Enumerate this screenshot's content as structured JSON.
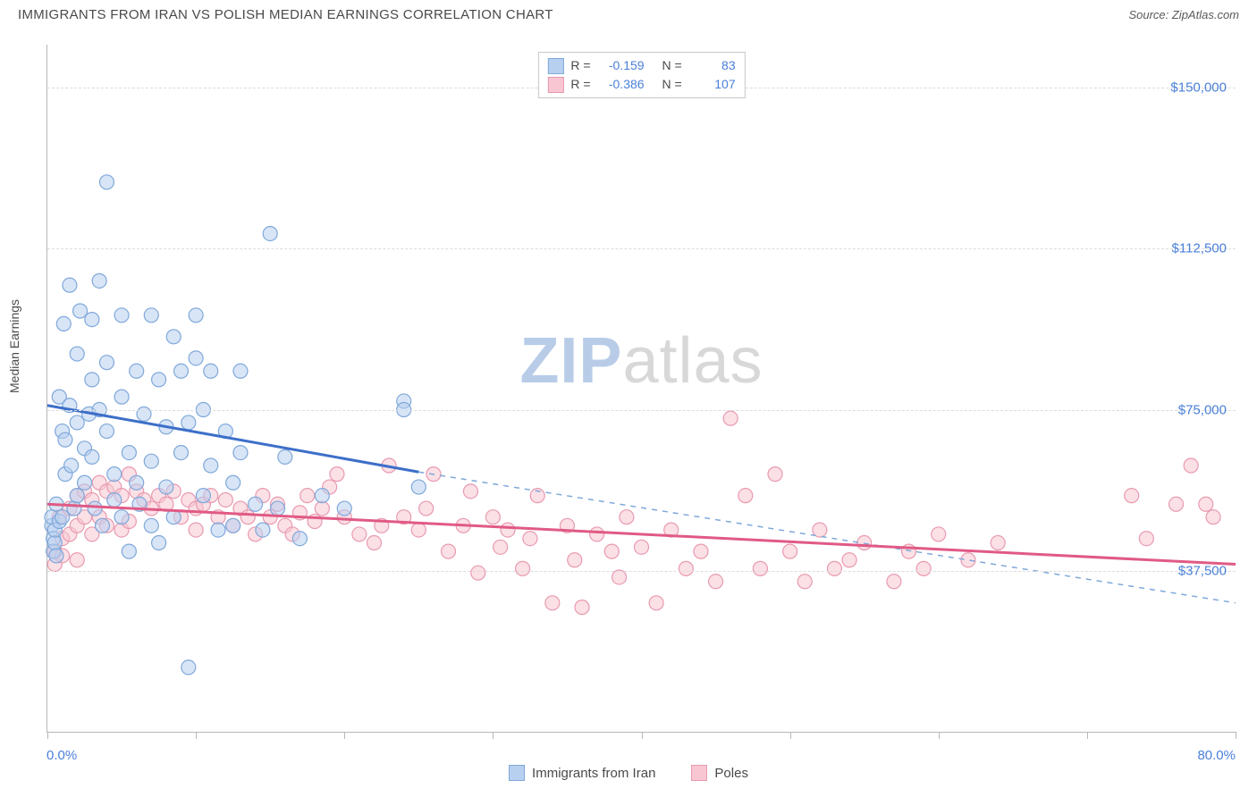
{
  "title": "IMMIGRANTS FROM IRAN VS POLISH MEDIAN EARNINGS CORRELATION CHART",
  "source": "Source: ZipAtlas.com",
  "ylabel": "Median Earnings",
  "watermark_zip": "ZIP",
  "watermark_atlas": "atlas",
  "chart": {
    "type": "scatter",
    "xlim": [
      0,
      80
    ],
    "ylim": [
      0,
      160000
    ],
    "xunit": "%",
    "yunit": "$",
    "yticks": [
      37500,
      75000,
      112500,
      150000
    ],
    "ytick_labels": [
      "$37,500",
      "$75,000",
      "$112,500",
      "$150,000"
    ],
    "xtick_positions": [
      0,
      10,
      20,
      30,
      40,
      50,
      60,
      70,
      80
    ],
    "xaxis_start_label": "0.0%",
    "xaxis_end_label": "80.0%",
    "grid_color": "#dcdcdc",
    "grid_dash": "4,4",
    "background_color": "#ffffff",
    "axis_color": "#b8b8b8",
    "marker_radius": 8,
    "marker_stroke_width": 1.2,
    "series": [
      {
        "name": "Immigrants from Iran",
        "legend_label": "Immigrants from Iran",
        "fill": "#b8d0f0",
        "fill_opacity": 0.55,
        "stroke": "#7fa8da",
        "line_color": "#3d6fc9",
        "line_width": 3,
        "dash_color": "#7fa8da",
        "R_label": "R =",
        "R": "-0.159",
        "N_label": "N =",
        "N": "83",
        "trend_solid": {
          "x1": 0,
          "y1": 76000,
          "x2": 25,
          "y2": 60500
        },
        "trend_dash": {
          "x1": 25,
          "y1": 60500,
          "x2": 80,
          "y2": 30000
        },
        "points": [
          [
            0.3,
            48000
          ],
          [
            0.3,
            50000
          ],
          [
            0.4,
            45000
          ],
          [
            0.4,
            42000
          ],
          [
            0.5,
            44000
          ],
          [
            0.5,
            47000
          ],
          [
            0.6,
            41000
          ],
          [
            0.6,
            53000
          ],
          [
            0.8,
            78000
          ],
          [
            0.8,
            49000
          ],
          [
            1.0,
            70000
          ],
          [
            1.0,
            50000
          ],
          [
            1.1,
            95000
          ],
          [
            1.2,
            68000
          ],
          [
            1.2,
            60000
          ],
          [
            1.5,
            104000
          ],
          [
            1.5,
            76000
          ],
          [
            1.6,
            62000
          ],
          [
            1.8,
            52000
          ],
          [
            2.0,
            88000
          ],
          [
            2.0,
            72000
          ],
          [
            2.0,
            55000
          ],
          [
            2.2,
            98000
          ],
          [
            2.5,
            66000
          ],
          [
            2.5,
            58000
          ],
          [
            2.8,
            74000
          ],
          [
            3.0,
            96000
          ],
          [
            3.0,
            82000
          ],
          [
            3.0,
            64000
          ],
          [
            3.2,
            52000
          ],
          [
            3.5,
            105000
          ],
          [
            3.5,
            75000
          ],
          [
            3.7,
            48000
          ],
          [
            4.0,
            128000
          ],
          [
            4.0,
            86000
          ],
          [
            4.0,
            70000
          ],
          [
            4.5,
            60000
          ],
          [
            4.5,
            54000
          ],
          [
            5.0,
            97000
          ],
          [
            5.0,
            78000
          ],
          [
            5.0,
            50000
          ],
          [
            5.5,
            65000
          ],
          [
            5.5,
            42000
          ],
          [
            6.0,
            84000
          ],
          [
            6.0,
            58000
          ],
          [
            6.2,
            53000
          ],
          [
            6.5,
            74000
          ],
          [
            7.0,
            97000
          ],
          [
            7.0,
            63000
          ],
          [
            7.0,
            48000
          ],
          [
            7.5,
            82000
          ],
          [
            7.5,
            44000
          ],
          [
            8.0,
            71000
          ],
          [
            8.0,
            57000
          ],
          [
            8.5,
            92000
          ],
          [
            8.5,
            50000
          ],
          [
            9.0,
            84000
          ],
          [
            9.0,
            65000
          ],
          [
            9.5,
            72000
          ],
          [
            9.5,
            15000
          ],
          [
            10.0,
            97000
          ],
          [
            10.0,
            87000
          ],
          [
            10.5,
            75000
          ],
          [
            10.5,
            55000
          ],
          [
            11.0,
            84000
          ],
          [
            11.0,
            62000
          ],
          [
            11.5,
            47000
          ],
          [
            12.0,
            70000
          ],
          [
            12.5,
            58000
          ],
          [
            12.5,
            48000
          ],
          [
            13.0,
            84000
          ],
          [
            13.0,
            65000
          ],
          [
            14.0,
            53000
          ],
          [
            14.5,
            47000
          ],
          [
            15.0,
            116000
          ],
          [
            15.5,
            52000
          ],
          [
            16.0,
            64000
          ],
          [
            17.0,
            45000
          ],
          [
            18.5,
            55000
          ],
          [
            20.0,
            52000
          ],
          [
            24.0,
            77000
          ],
          [
            24.0,
            75000
          ],
          [
            25.0,
            57000
          ]
        ]
      },
      {
        "name": "Poles",
        "legend_label": "Poles",
        "fill": "#f8c6d2",
        "fill_opacity": 0.55,
        "stroke": "#e89ab0",
        "line_color": "#e05a85",
        "line_width": 3,
        "R_label": "R =",
        "R": "-0.386",
        "N_label": "N =",
        "N": "107",
        "trend_solid": {
          "x1": 0,
          "y1": 53000,
          "x2": 80,
          "y2": 39000
        },
        "points": [
          [
            0.5,
            42000
          ],
          [
            0.5,
            39000
          ],
          [
            0.8,
            50000
          ],
          [
            1.0,
            45000
          ],
          [
            1.0,
            41000
          ],
          [
            1.5,
            52000
          ],
          [
            1.5,
            46000
          ],
          [
            2.0,
            55000
          ],
          [
            2.0,
            48000
          ],
          [
            2.0,
            40000
          ],
          [
            2.5,
            56000
          ],
          [
            2.5,
            50000
          ],
          [
            3.0,
            54000
          ],
          [
            3.0,
            46000
          ],
          [
            3.5,
            58000
          ],
          [
            3.5,
            50000
          ],
          [
            4.0,
            56000
          ],
          [
            4.0,
            48000
          ],
          [
            4.5,
            57000
          ],
          [
            5.0,
            55000
          ],
          [
            5.0,
            47000
          ],
          [
            5.5,
            60000
          ],
          [
            5.5,
            49000
          ],
          [
            6.0,
            56000
          ],
          [
            6.5,
            54000
          ],
          [
            7.0,
            52000
          ],
          [
            7.5,
            55000
          ],
          [
            8.0,
            53000
          ],
          [
            8.5,
            56000
          ],
          [
            9.0,
            50000
          ],
          [
            9.5,
            54000
          ],
          [
            10.0,
            52000
          ],
          [
            10.0,
            47000
          ],
          [
            10.5,
            53000
          ],
          [
            11.0,
            55000
          ],
          [
            11.5,
            50000
          ],
          [
            12.0,
            54000
          ],
          [
            12.5,
            48000
          ],
          [
            13.0,
            52000
          ],
          [
            13.5,
            50000
          ],
          [
            14.0,
            46000
          ],
          [
            14.5,
            55000
          ],
          [
            15.0,
            50000
          ],
          [
            15.5,
            53000
          ],
          [
            16.0,
            48000
          ],
          [
            16.5,
            46000
          ],
          [
            17.0,
            51000
          ],
          [
            17.5,
            55000
          ],
          [
            18.0,
            49000
          ],
          [
            18.5,
            52000
          ],
          [
            19.0,
            57000
          ],
          [
            19.5,
            60000
          ],
          [
            20.0,
            50000
          ],
          [
            21.0,
            46000
          ],
          [
            22.0,
            44000
          ],
          [
            22.5,
            48000
          ],
          [
            23.0,
            62000
          ],
          [
            24.0,
            50000
          ],
          [
            25.0,
            47000
          ],
          [
            25.5,
            52000
          ],
          [
            26.0,
            60000
          ],
          [
            27.0,
            42000
          ],
          [
            28.0,
            48000
          ],
          [
            28.5,
            56000
          ],
          [
            29.0,
            37000
          ],
          [
            30.0,
            50000
          ],
          [
            30.5,
            43000
          ],
          [
            31.0,
            47000
          ],
          [
            32.0,
            38000
          ],
          [
            32.5,
            45000
          ],
          [
            33.0,
            55000
          ],
          [
            34.0,
            30000
          ],
          [
            35.0,
            48000
          ],
          [
            35.5,
            40000
          ],
          [
            36.0,
            29000
          ],
          [
            37.0,
            46000
          ],
          [
            38.0,
            42000
          ],
          [
            38.5,
            36000
          ],
          [
            39.0,
            50000
          ],
          [
            40.0,
            43000
          ],
          [
            41.0,
            30000
          ],
          [
            42.0,
            47000
          ],
          [
            43.0,
            38000
          ],
          [
            44.0,
            42000
          ],
          [
            45.0,
            35000
          ],
          [
            46.0,
            73000
          ],
          [
            47.0,
            55000
          ],
          [
            48.0,
            38000
          ],
          [
            49.0,
            60000
          ],
          [
            50.0,
            42000
          ],
          [
            51.0,
            35000
          ],
          [
            52.0,
            47000
          ],
          [
            53.0,
            38000
          ],
          [
            54.0,
            40000
          ],
          [
            55.0,
            44000
          ],
          [
            57.0,
            35000
          ],
          [
            58.0,
            42000
          ],
          [
            59.0,
            38000
          ],
          [
            60.0,
            46000
          ],
          [
            62.0,
            40000
          ],
          [
            64.0,
            44000
          ],
          [
            73.0,
            55000
          ],
          [
            76.0,
            53000
          ],
          [
            77.0,
            62000
          ],
          [
            78.0,
            53000
          ],
          [
            78.5,
            50000
          ],
          [
            74.0,
            45000
          ]
        ]
      }
    ]
  }
}
